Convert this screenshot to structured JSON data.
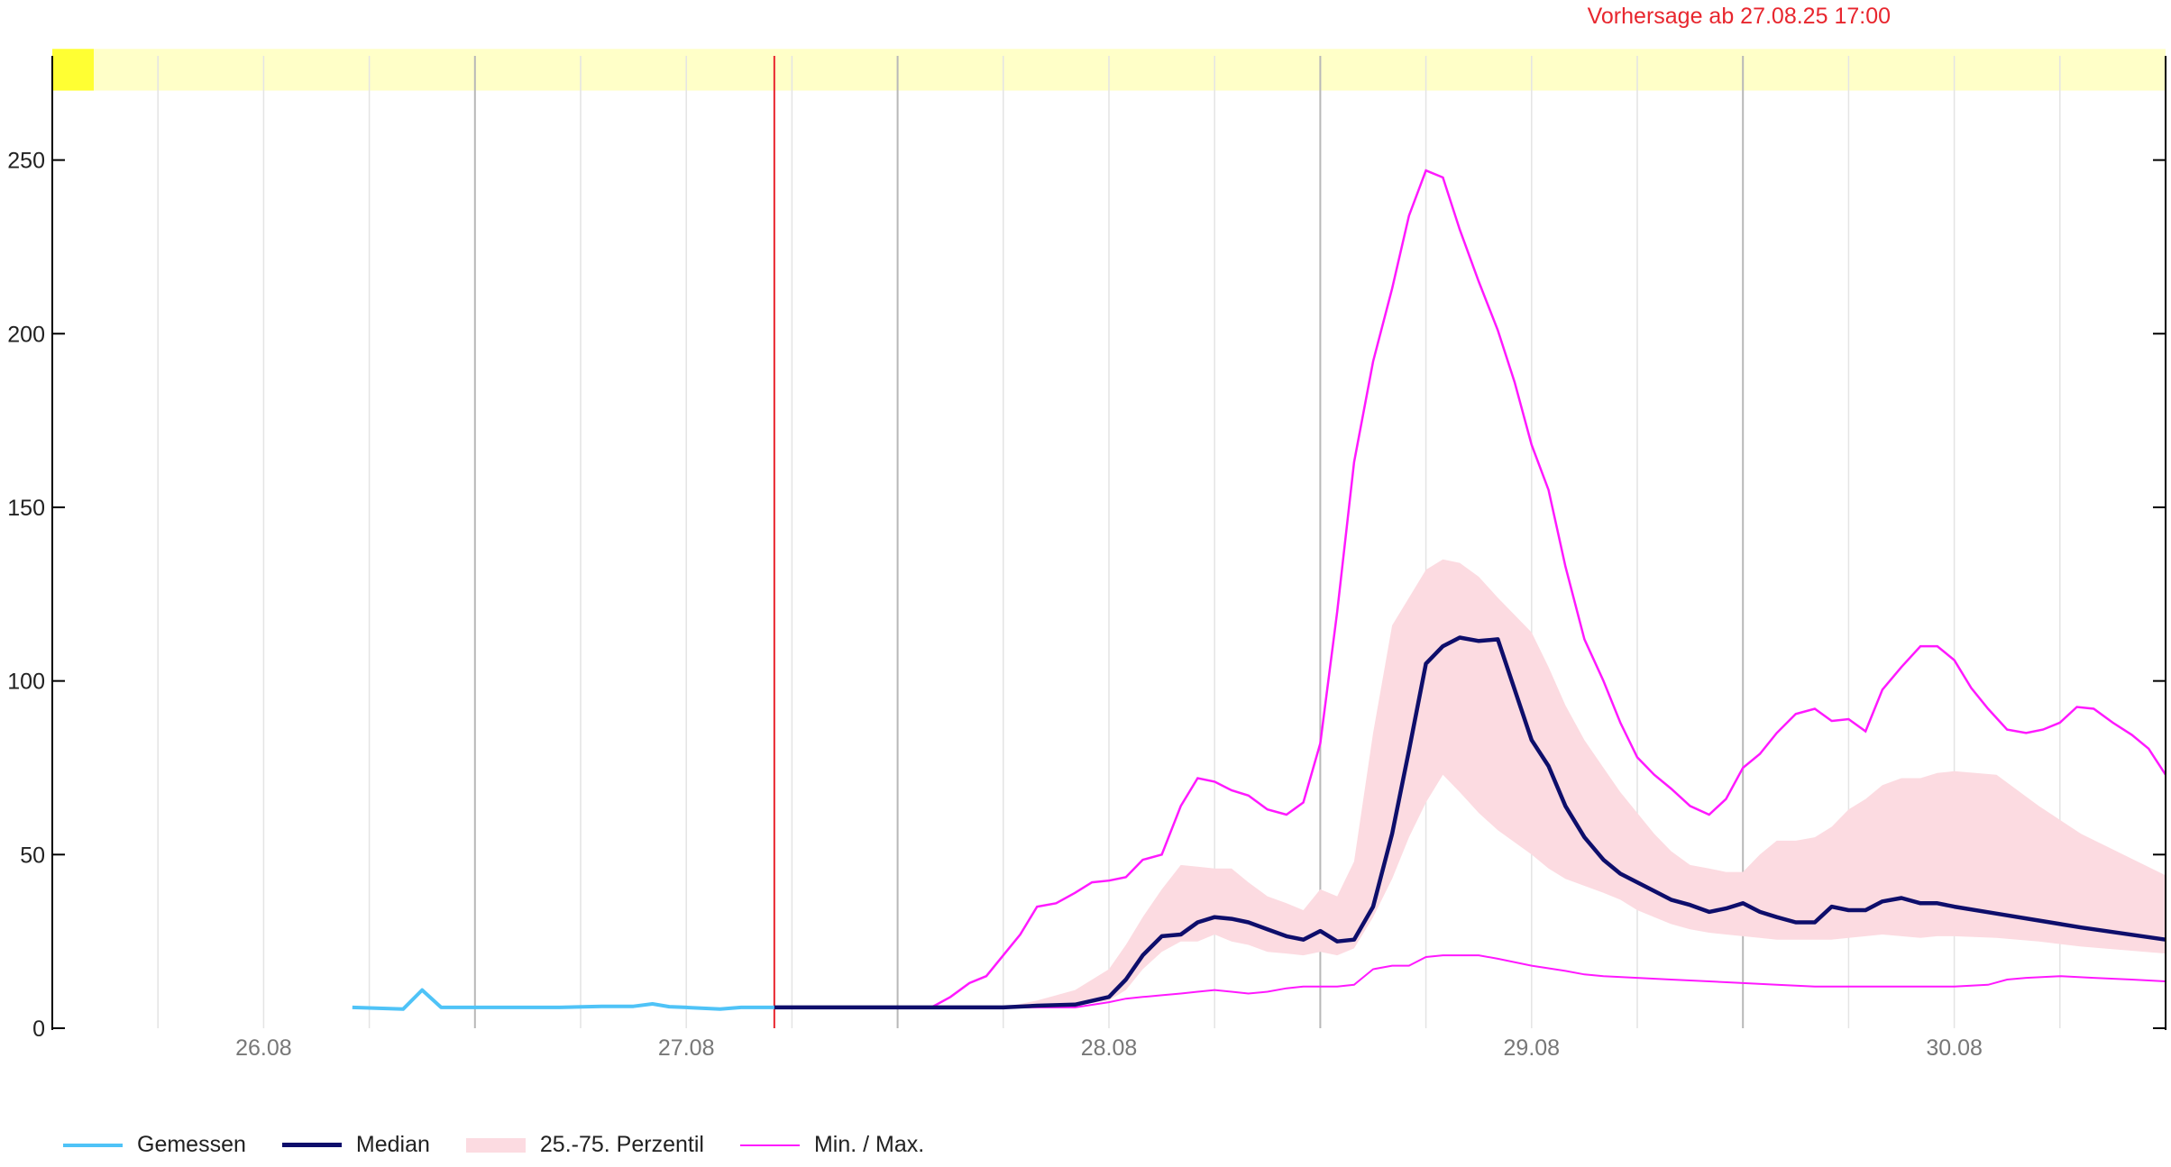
{
  "forecast_label": "Vorhersage ab 27.08.25 17:00",
  "colors": {
    "measured": "#4fc3f7",
    "median": "#0e0e6b",
    "band": "#fcdbe1",
    "minmax": "#ff19ff",
    "forecast_line": "#e8262e",
    "warning_bar": "#ffffc8",
    "warning_bar_accent": "#ffff33"
  },
  "legend": {
    "measured": "Gemessen",
    "median": "Median",
    "band": "25.-75. Perzentil",
    "minmax": "Min. / Max."
  },
  "chart_data": {
    "type": "line",
    "x_unit": "day of Aug 2025 (fractional)",
    "xlim": [
      25.5,
      30.5
    ],
    "ylim": [
      0,
      280
    ],
    "y_ticks": [
      0,
      50,
      100,
      150,
      200,
      250
    ],
    "x_ticks": [
      {
        "value": 26,
        "label": "26.08"
      },
      {
        "value": 27,
        "label": "27.08"
      },
      {
        "value": 28,
        "label": "28.08"
      },
      {
        "value": 29,
        "label": "29.08"
      },
      {
        "value": 30,
        "label": "30.08"
      }
    ],
    "forecast_start": 27.2083,
    "warning_band": {
      "from": 270,
      "to": 282
    },
    "series": [
      {
        "name": "Gemessen",
        "key": "measured",
        "x": [
          26.21,
          26.33,
          26.375,
          26.42,
          26.5,
          26.6,
          26.7,
          26.8,
          26.875,
          26.92,
          26.96,
          27.0,
          27.08,
          27.13,
          27.2083
        ],
        "y": [
          6,
          5.5,
          11,
          6,
          6,
          6,
          6,
          6.3,
          6.3,
          7,
          6.2,
          6,
          5.5,
          6,
          6
        ]
      },
      {
        "name": "Median",
        "key": "median",
        "x": [
          27.2083,
          27.42,
          27.58,
          27.75,
          27.83,
          27.92,
          28.0,
          28.04,
          28.08,
          28.125,
          28.17,
          28.21,
          28.25,
          28.29,
          28.33,
          28.375,
          28.42,
          28.46,
          28.5,
          28.54,
          28.58,
          28.625,
          28.67,
          28.71,
          28.75,
          28.79,
          28.83,
          28.875,
          28.92,
          29.0,
          29.04,
          29.08,
          29.125,
          29.17,
          29.21,
          29.25,
          29.29,
          29.33,
          29.375,
          29.42,
          29.46,
          29.5,
          29.54,
          29.58,
          29.625,
          29.67,
          29.71,
          29.75,
          29.79,
          29.83,
          29.875,
          29.92,
          29.96,
          30.0,
          30.1,
          30.2,
          30.3,
          30.5
        ],
        "y": [
          6,
          6,
          6,
          6,
          6.5,
          6.8,
          9,
          14,
          21,
          26.5,
          27,
          30.5,
          32,
          31.5,
          30.5,
          28.5,
          26.5,
          25.5,
          28,
          25,
          25.5,
          35,
          56,
          80,
          105,
          110,
          112.5,
          111.5,
          112,
          83,
          75.5,
          64,
          55,
          48.5,
          44.5,
          42,
          39.5,
          37,
          35.5,
          33.5,
          34.5,
          36,
          33.5,
          32,
          30.5,
          30.5,
          35,
          34,
          34,
          36.5,
          37.5,
          36,
          36,
          35,
          33,
          31,
          29,
          25.5
        ]
      },
      {
        "name": "25.-75. Perzentil",
        "key": "band",
        "x": [
          27.2083,
          27.42,
          27.58,
          27.75,
          27.83,
          27.92,
          28.0,
          28.04,
          28.08,
          28.125,
          28.17,
          28.21,
          28.25,
          28.29,
          28.33,
          28.375,
          28.42,
          28.46,
          28.5,
          28.54,
          28.58,
          28.625,
          28.67,
          28.71,
          28.75,
          28.79,
          28.83,
          28.875,
          28.92,
          29.0,
          29.04,
          29.08,
          29.125,
          29.17,
          29.21,
          29.25,
          29.29,
          29.33,
          29.375,
          29.42,
          29.46,
          29.5,
          29.54,
          29.58,
          29.625,
          29.67,
          29.71,
          29.75,
          29.79,
          29.83,
          29.875,
          29.92,
          29.96,
          30.0,
          30.1,
          30.2,
          30.3,
          30.5
        ],
        "low": [
          6,
          6,
          6,
          6,
          6,
          6.5,
          8,
          11,
          17,
          22,
          25,
          25,
          27,
          25,
          24,
          22,
          21.5,
          21,
          22,
          21,
          23,
          32,
          43,
          55,
          65,
          73,
          68,
          62,
          57,
          50,
          46,
          43,
          41,
          39,
          37,
          34,
          32,
          30,
          28.5,
          27.5,
          27,
          26.5,
          26,
          25.5,
          25.5,
          25.5,
          25.5,
          26,
          26.5,
          27,
          26.5,
          26,
          26.5,
          26.5,
          26,
          25,
          23.5,
          21.5
        ],
        "high": [
          6,
          6,
          6,
          6,
          8,
          11,
          17,
          24,
          32,
          40,
          47,
          46.5,
          46,
          46,
          42,
          38,
          36,
          34,
          40,
          38,
          48,
          85,
          116,
          124,
          132,
          135,
          134,
          130,
          124,
          114,
          104,
          93,
          83,
          75,
          68,
          62,
          56,
          51,
          47,
          46,
          45,
          45,
          50,
          54,
          54,
          55,
          58,
          63,
          66,
          70,
          72,
          72,
          73.5,
          74,
          73,
          64,
          56,
          44
        ]
      },
      {
        "name": "Min. / Max.",
        "key": "max",
        "x": [
          27.2083,
          27.42,
          27.58,
          27.625,
          27.67,
          27.71,
          27.75,
          27.79,
          27.83,
          27.875,
          27.92,
          27.96,
          28.0,
          28.04,
          28.08,
          28.125,
          28.17,
          28.21,
          28.25,
          28.29,
          28.33,
          28.375,
          28.42,
          28.46,
          28.5,
          28.54,
          28.58,
          28.625,
          28.67,
          28.71,
          28.75,
          28.79,
          28.83,
          28.875,
          28.92,
          28.96,
          29.0,
          29.04,
          29.08,
          29.125,
          29.17,
          29.21,
          29.25,
          29.29,
          29.33,
          29.375,
          29.42,
          29.46,
          29.5,
          29.54,
          29.58,
          29.625,
          29.67,
          29.71,
          29.75,
          29.79,
          29.83,
          29.875,
          29.92,
          29.96,
          30.0,
          30.04,
          30.08,
          30.125,
          30.17,
          30.21,
          30.25,
          30.29,
          30.33,
          30.375,
          30.42,
          30.46,
          30.5
        ],
        "y": [
          6,
          6,
          6,
          9,
          13,
          15,
          21,
          27,
          35,
          36,
          39,
          42,
          42.5,
          43.5,
          48.5,
          50,
          64,
          72,
          71,
          68.5,
          67,
          63,
          61.5,
          65,
          82,
          120,
          163,
          192,
          213,
          234,
          247,
          245,
          230,
          215,
          201,
          186,
          168,
          155,
          133,
          112,
          100,
          88,
          78,
          73,
          69,
          64,
          61.5,
          66,
          75,
          79,
          85,
          90.5,
          92,
          88.5,
          89,
          85.5,
          97.5,
          104,
          110,
          110,
          106,
          98,
          92,
          86,
          85,
          86,
          88,
          92.5,
          92,
          88,
          84.5,
          80.5,
          73
        ]
      },
      {
        "name": "Min. / Max.",
        "key": "min",
        "x": [
          27.2083,
          27.42,
          27.58,
          27.75,
          27.92,
          28.0,
          28.04,
          28.08,
          28.125,
          28.17,
          28.21,
          28.25,
          28.29,
          28.33,
          28.375,
          28.42,
          28.46,
          28.5,
          28.54,
          28.58,
          28.625,
          28.67,
          28.71,
          28.75,
          28.79,
          28.83,
          28.875,
          28.92,
          29.0,
          29.08,
          29.125,
          29.17,
          29.25,
          29.33,
          29.42,
          29.5,
          29.58,
          29.67,
          29.75,
          29.83,
          29.92,
          30.0,
          30.08,
          30.125,
          30.17,
          30.25,
          30.33,
          30.42,
          30.5
        ],
        "y": [
          6,
          6,
          6,
          6,
          6,
          7.5,
          8.5,
          9,
          9.5,
          10,
          10.5,
          11,
          10.5,
          10,
          10.5,
          11.5,
          12,
          12,
          12,
          12.5,
          17,
          18,
          18,
          20.5,
          21,
          21,
          21,
          20,
          18,
          16.5,
          15.5,
          15,
          14.5,
          14,
          13.5,
          13,
          12.5,
          12,
          12,
          12,
          12,
          12,
          12.5,
          14,
          14.5,
          15,
          14.5,
          14,
          13.5
        ]
      }
    ]
  }
}
